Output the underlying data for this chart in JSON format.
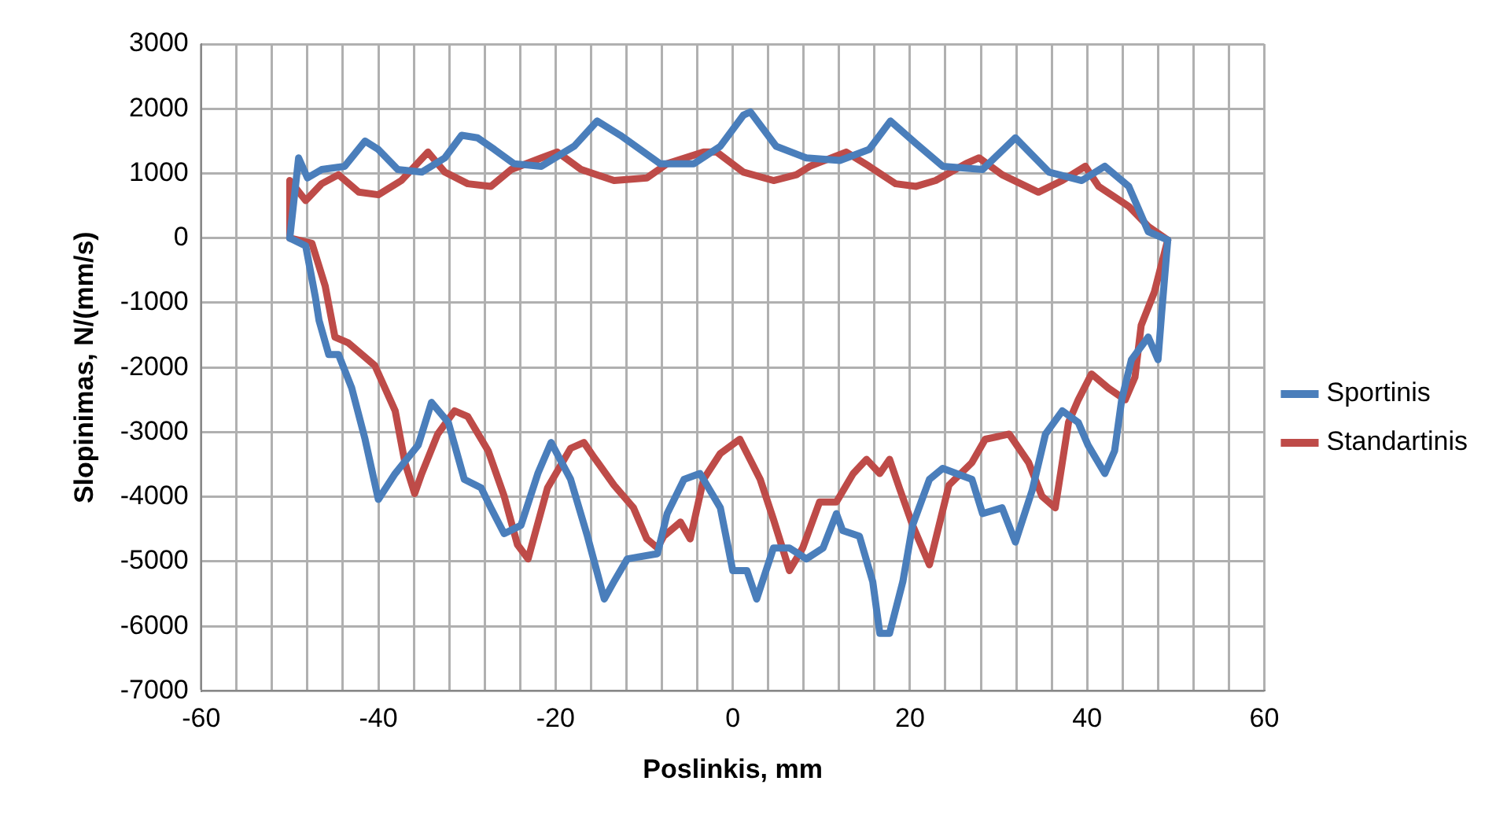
{
  "chart_data": {
    "type": "line",
    "xlabel": "Poslinkis, mm",
    "ylabel": "Slopinimas, N/(mm/s)",
    "xlim": [
      -60,
      60
    ],
    "xticks": [
      -60,
      {
        "value": -56,
        "label": null
      },
      {
        "value": -52,
        "label": null
      },
      {
        "value": -48,
        "label": null
      },
      {
        "value": -44,
        "label": null
      },
      -40,
      {
        "value": -36,
        "label": null
      },
      {
        "value": -32,
        "label": null
      },
      {
        "value": -28,
        "label": null
      },
      {
        "value": -24,
        "label": null
      },
      -20,
      {
        "value": -16,
        "label": null
      },
      {
        "value": -12,
        "label": null
      },
      {
        "value": -8,
        "label": null
      },
      {
        "value": -4,
        "label": null
      },
      0,
      {
        "value": 4,
        "label": null
      },
      {
        "value": 8,
        "label": null
      },
      {
        "value": 12,
        "label": null
      },
      {
        "value": 16,
        "label": null
      },
      20,
      {
        "value": 24,
        "label": null
      },
      {
        "value": 28,
        "label": null
      },
      {
        "value": 32,
        "label": null
      },
      {
        "value": 36,
        "label": null
      },
      40,
      {
        "value": 44,
        "label": null
      },
      {
        "value": 48,
        "label": null
      },
      {
        "value": 52,
        "label": null
      },
      {
        "value": 56,
        "label": null
      },
      60
    ],
    "ylim": [
      -7000,
      3000
    ],
    "yticks": [
      -7000,
      -6000,
      -5000,
      -4000,
      -3000,
      -2000,
      -1000,
      0,
      1000,
      2000,
      3000
    ],
    "grid": true,
    "legend": "right",
    "marker": "none",
    "line_style": "solid",
    "series": [
      {
        "name": "Sportinis",
        "color": "#4a7ebb",
        "x": [
          -50,
          -49,
          -48,
          -46.4,
          -43.8,
          -41.5,
          -40,
          -37.8,
          -35.1,
          -32.5,
          -30.6,
          -28.8,
          -26.9,
          -24.7,
          -21.6,
          -17.9,
          -15.3,
          -12.7,
          -8.2,
          -4.4,
          -1.4,
          1.2,
          2,
          4.9,
          8.3,
          12.1,
          15.4,
          17.8,
          20.7,
          23.7,
          28.2,
          31.9,
          35.7,
          39.4,
          42,
          44.7,
          46.9,
          49.1
        ],
        "values": [
          0,
          1240,
          930,
          1060,
          1110,
          1500,
          1370,
          1060,
          1020,
          1240,
          1590,
          1550,
          1370,
          1150,
          1110,
          1420,
          1810,
          1590,
          1150,
          1150,
          1420,
          1900,
          1950,
          1420,
          1240,
          1200,
          1370,
          1810,
          1460,
          1110,
          1060,
          1550,
          1020,
          890,
          1110,
          800,
          100,
          -30
        ]
      },
      {
        "color": "#4a7ebb",
        "x": [
          -50,
          -48.2,
          -47.1,
          -46.7,
          -45.6,
          -44.5,
          -43,
          -41.5,
          -40,
          -38.1,
          -35.5,
          -34,
          -32.1,
          -30.3,
          -28.4,
          -27.3,
          -25.8,
          -23.9,
          -22,
          -20.5,
          -18.3,
          -16.4,
          -14.5,
          -13.4,
          -11.9,
          -8.5,
          -7.4,
          -5.5,
          -3.7,
          -1.4,
          0,
          1.6,
          2.7,
          4.6,
          6.4,
          8.3,
          10.2,
          11.7,
          12.4,
          14.3,
          15.8,
          16.6,
          17.7,
          19.2,
          20.3,
          22.2,
          23.7,
          27,
          28.2,
          30.4,
          31.9,
          33.8,
          35.3,
          37.2,
          39,
          40.1,
          42,
          43.1,
          43.9,
          45,
          46.9,
          48,
          48.4,
          49.1
        ],
        "values": [
          0,
          -120,
          -920,
          -1270,
          -1800,
          -1800,
          -2320,
          -3110,
          -4040,
          -3640,
          -3200,
          -2540,
          -2850,
          -3730,
          -3860,
          -4170,
          -4570,
          -4440,
          -3640,
          -3160,
          -3730,
          -4610,
          -5580,
          -5310,
          -4960,
          -4880,
          -4260,
          -3730,
          -3640,
          -4170,
          -5140,
          -5140,
          -5580,
          -4790,
          -4790,
          -4960,
          -4790,
          -4260,
          -4520,
          -4610,
          -5310,
          -6110,
          -6110,
          -5310,
          -4440,
          -3730,
          -3560,
          -3730,
          -4260,
          -4170,
          -4700,
          -3900,
          -3030,
          -2670,
          -2850,
          -3200,
          -3640,
          -3290,
          -2500,
          -1880,
          -1530,
          -1880,
          -1180,
          -30
        ]
      },
      {
        "name": "Standartinis",
        "color": "#be4b48",
        "x": [
          -50,
          -50,
          -48.2,
          -46.4,
          -44.5,
          -42.2,
          -40,
          -37.4,
          -34.4,
          -32.5,
          -29.9,
          -27.3,
          -25,
          -21.6,
          -19.8,
          -17.1,
          -13.4,
          -9.7,
          -7.4,
          -3.3,
          -1.8,
          1.2,
          4.6,
          7.2,
          8.7,
          12.8,
          15.4,
          18.4,
          20.7,
          22.9,
          26.3,
          27.8,
          30.4,
          34.5,
          37.2,
          39.8,
          41.3,
          44.7,
          46.9,
          49.1
        ],
        "values": [
          0,
          890,
          580,
          840,
          980,
          710,
          670,
          890,
          1330,
          1020,
          840,
          800,
          1060,
          1240,
          1330,
          1060,
          890,
          930,
          1150,
          1330,
          1330,
          1020,
          890,
          980,
          1110,
          1330,
          1110,
          840,
          800,
          890,
          1150,
          1240,
          980,
          710,
          890,
          1110,
          800,
          490,
          180,
          -30
        ]
      },
      {
        "color": "#be4b48",
        "x": [
          -50,
          -47.5,
          -46,
          -44.9,
          -43.4,
          -40.4,
          -38.1,
          -37,
          -35.9,
          -35.1,
          -33.3,
          -31.4,
          -29.9,
          -27.6,
          -25.8,
          -24.3,
          -23.1,
          -20.9,
          -18.3,
          -16.8,
          -15.7,
          -13.4,
          -11.2,
          -9.7,
          -8.5,
          -7.8,
          -5.9,
          -4.8,
          -3.3,
          -1.4,
          0.8,
          3.1,
          4.6,
          6.4,
          7.9,
          9.8,
          11.7,
          13.6,
          15.1,
          16.6,
          17.7,
          18.8,
          20.3,
          22.2,
          24.4,
          27,
          28.5,
          31.2,
          33.4,
          34.9,
          36.4,
          37.9,
          39,
          40.5,
          42.4,
          44.3,
          45.4,
          46.1,
          47.6,
          49.1
        ],
        "values": [
          0,
          -80,
          -740,
          -1530,
          -1620,
          -1970,
          -2670,
          -3470,
          -3950,
          -3640,
          -3030,
          -2670,
          -2760,
          -3290,
          -3990,
          -4740,
          -4960,
          -3860,
          -3250,
          -3160,
          -3380,
          -3820,
          -4170,
          -4650,
          -4790,
          -4610,
          -4390,
          -4650,
          -3730,
          -3330,
          -3110,
          -3730,
          -4350,
          -5140,
          -4790,
          -4080,
          -4080,
          -3640,
          -3420,
          -3640,
          -3420,
          -3860,
          -4440,
          -5050,
          -3820,
          -3470,
          -3110,
          -3030,
          -3470,
          -3990,
          -4170,
          -2850,
          -2500,
          -2100,
          -2320,
          -2500,
          -2150,
          -1350,
          -830,
          -30
        ]
      }
    ]
  }
}
